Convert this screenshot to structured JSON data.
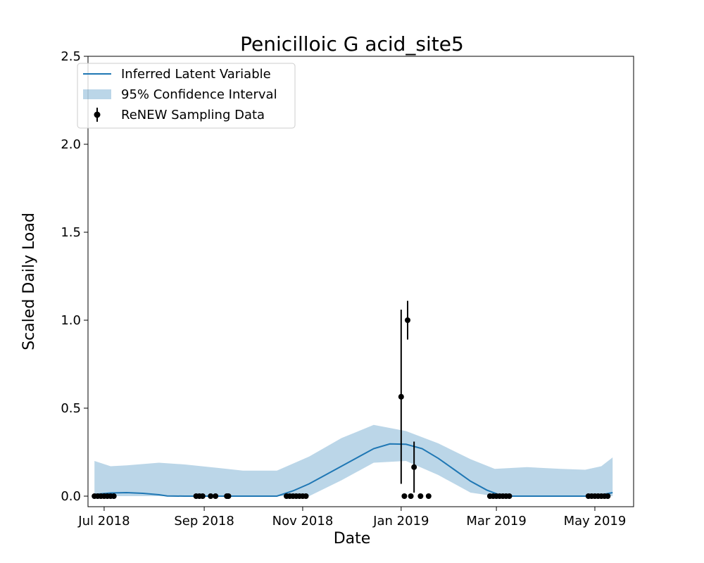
{
  "chart_data": {
    "type": "line",
    "title": "Penicilloic G acid_site5",
    "xlabel": "Date",
    "ylabel": "Scaled Daily Load",
    "ylim": [
      -0.06,
      2.5
    ],
    "xlim": [
      "2018-06-21",
      "2019-05-25"
    ],
    "grid": false,
    "legend_position": "top-left",
    "x_ticks": [
      "2018-07-01",
      "2018-09-01",
      "2018-11-01",
      "2019-01-01",
      "2019-03-01",
      "2019-05-01"
    ],
    "x_tick_labels": [
      "Jul 2018",
      "Sep 2018",
      "Nov 2018",
      "Jan 2019",
      "Mar 2019",
      "May 2019"
    ],
    "y_ticks": [
      0.0,
      0.5,
      1.0,
      1.5,
      2.0,
      2.5
    ],
    "y_tick_labels": [
      "0.0",
      "0.5",
      "1.0",
      "1.5",
      "2.0",
      "2.5"
    ],
    "legend": {
      "latent": "Inferred Latent Variable",
      "ci": "95% Confidence Interval",
      "samples": "ReNEW Sampling Data"
    },
    "colors": {
      "line": "#1f77b4",
      "band": "#1f77b4",
      "points": "#000000"
    },
    "latent": {
      "x": [
        "2018-06-25",
        "2018-07-05",
        "2018-07-15",
        "2018-07-25",
        "2018-08-04",
        "2018-08-09",
        "2018-08-20",
        "2018-09-10",
        "2018-10-01",
        "2018-10-16",
        "2018-10-26",
        "2018-11-05",
        "2018-11-15",
        "2018-11-25",
        "2018-12-05",
        "2018-12-15",
        "2018-12-25",
        "2019-01-04",
        "2019-01-14",
        "2019-01-24",
        "2019-02-03",
        "2019-02-13",
        "2019-02-23",
        "2019-03-05",
        "2019-03-20",
        "2019-04-10",
        "2019-05-01",
        "2019-05-12"
      ],
      "y": [
        0.01,
        0.018,
        0.02,
        0.016,
        0.008,
        0.001,
        0.0,
        0.0,
        0.0,
        0.0,
        0.03,
        0.07,
        0.12,
        0.17,
        0.22,
        0.27,
        0.297,
        0.295,
        0.27,
        0.215,
        0.15,
        0.085,
        0.035,
        0.0,
        0.0,
        0.0,
        0.0,
        0.02
      ]
    },
    "ci": {
      "x": [
        "2018-06-25",
        "2018-07-05",
        "2018-07-15",
        "2018-08-04",
        "2018-08-20",
        "2018-09-10",
        "2018-09-25",
        "2018-10-16",
        "2018-11-05",
        "2018-11-25",
        "2018-12-15",
        "2019-01-04",
        "2019-01-24",
        "2019-02-13",
        "2019-02-28",
        "2019-03-20",
        "2019-04-10",
        "2019-04-25",
        "2019-05-05",
        "2019-05-12"
      ],
      "upper": [
        0.2,
        0.17,
        0.175,
        0.19,
        0.18,
        0.16,
        0.145,
        0.145,
        0.225,
        0.33,
        0.405,
        0.37,
        0.3,
        0.21,
        0.155,
        0.165,
        0.155,
        0.15,
        0.17,
        0.22
      ],
      "lower": [
        0.0,
        0.0,
        0.0,
        0.0,
        0.0,
        0.0,
        0.0,
        0.0,
        0.0,
        0.09,
        0.19,
        0.2,
        0.12,
        0.02,
        0.0,
        0.0,
        0.0,
        0.0,
        0.0,
        0.0
      ]
    },
    "samples": [
      {
        "x": "2018-06-25",
        "y": 0.0
      },
      {
        "x": "2018-06-27",
        "y": 0.0
      },
      {
        "x": "2018-06-29",
        "y": 0.0
      },
      {
        "x": "2018-07-01",
        "y": 0.0
      },
      {
        "x": "2018-07-03",
        "y": 0.0
      },
      {
        "x": "2018-07-05",
        "y": 0.0
      },
      {
        "x": "2018-07-07",
        "y": 0.0
      },
      {
        "x": "2018-08-27",
        "y": 0.0
      },
      {
        "x": "2018-08-29",
        "y": 0.0
      },
      {
        "x": "2018-08-31",
        "y": 0.0
      },
      {
        "x": "2018-09-05",
        "y": 0.0
      },
      {
        "x": "2018-09-08",
        "y": 0.0
      },
      {
        "x": "2018-09-15",
        "y": 0.0
      },
      {
        "x": "2018-09-16",
        "y": 0.0
      },
      {
        "x": "2018-10-22",
        "y": 0.0
      },
      {
        "x": "2018-10-24",
        "y": 0.0
      },
      {
        "x": "2018-10-26",
        "y": 0.0
      },
      {
        "x": "2018-10-28",
        "y": 0.0
      },
      {
        "x": "2018-10-30",
        "y": 0.0
      },
      {
        "x": "2018-11-01",
        "y": 0.0
      },
      {
        "x": "2018-11-03",
        "y": 0.0
      },
      {
        "x": "2019-01-01",
        "y": 0.565,
        "err": 0.495
      },
      {
        "x": "2019-01-03",
        "y": 0.0
      },
      {
        "x": "2019-01-05",
        "y": 1.0,
        "err": 0.11
      },
      {
        "x": "2019-01-07",
        "y": 0.0
      },
      {
        "x": "2019-01-09",
        "y": 0.165,
        "err": 0.145
      },
      {
        "x": "2019-01-13",
        "y": 0.0
      },
      {
        "x": "2019-01-18",
        "y": 0.0
      },
      {
        "x": "2019-02-25",
        "y": 0.0
      },
      {
        "x": "2019-02-27",
        "y": 0.0
      },
      {
        "x": "2019-03-01",
        "y": 0.0
      },
      {
        "x": "2019-03-03",
        "y": 0.0
      },
      {
        "x": "2019-03-05",
        "y": 0.0
      },
      {
        "x": "2019-03-07",
        "y": 0.0
      },
      {
        "x": "2019-03-09",
        "y": 0.0
      },
      {
        "x": "2019-04-27",
        "y": 0.0
      },
      {
        "x": "2019-04-29",
        "y": 0.0
      },
      {
        "x": "2019-05-01",
        "y": 0.0
      },
      {
        "x": "2019-05-03",
        "y": 0.0
      },
      {
        "x": "2019-05-05",
        "y": 0.0
      },
      {
        "x": "2019-05-07",
        "y": 0.0
      },
      {
        "x": "2019-05-09",
        "y": 0.0
      }
    ]
  }
}
